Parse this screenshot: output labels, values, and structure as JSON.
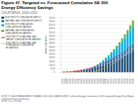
{
  "chart_data": {
    "type": "bar",
    "title": "Figure 47. Targeted vs. Forecasted Cumulative SB 350\nEnergy Efficiency Savings",
    "subtitle": "CALIFORNIA, 2016–2031",
    "ylabel": "TRILLION BTU",
    "notes": [
      "NOTE TO CALIFORNIA ENERGY DEMAND 2018-2030: DATA SOURCE: California Energy Commission's 2018 Integrated Energy Policy Report, California Energy Commission.",
      "NOTE: 1 kt = 3.4 Tbtu"
    ],
    "categories": [
      "2005",
      "2006",
      "2007",
      "2008",
      "2009",
      "2010",
      "2011",
      "2012",
      "2013",
      "2014",
      "2015",
      "2016",
      "2017",
      "2018",
      "2019",
      "2020",
      "2021",
      "2022",
      "2023",
      "2024",
      "2025",
      "2026",
      "2027",
      "2028",
      "2029",
      "2030",
      "2031"
    ],
    "series": [
      {
        "name": "ELECTRICITY CUMULATIVE DEFICIT",
        "type": "bar",
        "color": "#1f4e79",
        "values": [
          20,
          35,
          55,
          80,
          110,
          145,
          185,
          235,
          290,
          355,
          425,
          505,
          595,
          695,
          805,
          925,
          1050,
          1185,
          1330,
          1485,
          1650,
          1825,
          2010,
          2205,
          2410,
          2625,
          2850
        ]
      },
      {
        "name": "NATURAL GAS CUMULATIVE DEFICIT",
        "type": "bar",
        "color": "#2e75b6",
        "values": [
          5,
          10,
          15,
          22,
          30,
          40,
          52,
          65,
          82,
          100,
          120,
          145,
          172,
          202,
          235,
          270,
          310,
          352,
          398,
          448,
          502,
          560,
          622,
          688,
          758,
          832,
          910
        ]
      },
      {
        "name": "ELECTRICITY FORECASTED\nCUMULATIVE EE SAVINGS",
        "type": "bar",
        "color": "#00b0f0",
        "values": [
          0,
          0,
          0,
          0,
          0,
          0,
          0,
          0,
          0,
          0,
          0,
          30,
          90,
          165,
          255,
          360,
          480,
          615,
          765,
          930,
          1110,
          1305,
          1515,
          1740,
          1980,
          2235,
          2505
        ]
      },
      {
        "name": "NATURAL GAS FORECASTED\nCUMULATIVE EE SAVINGS",
        "type": "bar",
        "color": "#70ad47",
        "values": [
          0,
          0,
          0,
          0,
          0,
          0,
          0,
          0,
          0,
          0,
          0,
          10,
          30,
          55,
          85,
          120,
          162,
          208,
          260,
          315,
          375,
          440,
          510,
          585,
          665,
          750,
          840
        ]
      },
      {
        "name": "ELECTRICITY & NATURAL GAS\nTARGET CUMULATIVE EE SAVINGS",
        "type": "line",
        "line_style": "dashed",
        "color": "#ff0000",
        "values": [
          25,
          45,
          72,
          105,
          142,
          186,
          237,
          302,
          375,
          460,
          552,
          658,
          778,
          910,
          1055,
          1213,
          1378,
          1553,
          1742,
          1947,
          2169,
          2405,
          2655,
          2921,
          3203,
          3502,
          3818
        ]
      },
      {
        "name": "ELECTRICITY & NATURAL GAS\nFORECASTED CUMULATIVE\nEE SAVINGS",
        "type": "line",
        "line_style": "dashed",
        "color": "#ffc000",
        "values": [
          0,
          0,
          0,
          0,
          0,
          0,
          0,
          0,
          0,
          0,
          0,
          40,
          121,
          222,
          342,
          481,
          643,
          825,
          1026,
          1247,
          1487,
          1746,
          2024,
          2326,
          2647,
          2987,
          3348
        ]
      }
    ],
    "stacked": true,
    "ylim": [
      0,
      7500
    ],
    "yticks": [
      0,
      500,
      1000,
      1500,
      2000,
      2500,
      3000,
      3500,
      4000,
      4500,
      5000,
      5500,
      6000,
      6500,
      7000,
      7500
    ],
    "grid": true,
    "legend": "left"
  }
}
